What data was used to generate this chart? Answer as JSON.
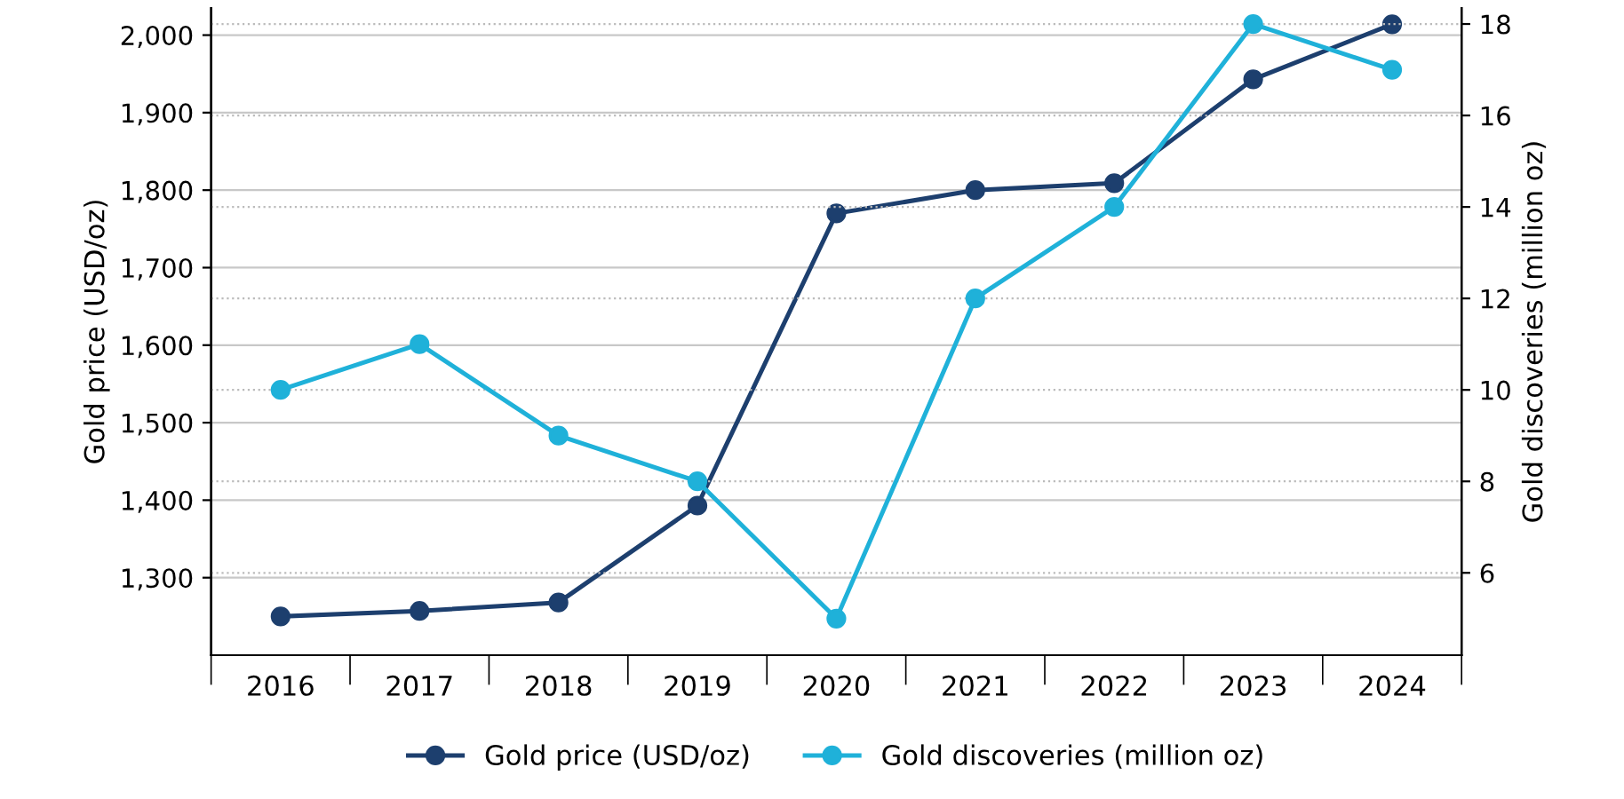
{
  "chart_data": {
    "type": "line",
    "ylabel": "Gold price (USD/oz)",
    "y2label": "Gold discoveries (million oz)",
    "categories": [
      "2016",
      "2017",
      "2018",
      "2019",
      "2020",
      "2021",
      "2022",
      "2023",
      "2024"
    ],
    "series": [
      {
        "name": "Gold price (USD/oz)",
        "color": "#1d3f6e",
        "values": [
          1250,
          1257,
          1268,
          1393,
          1770,
          1800,
          1809,
          1943,
          2014
        ]
      },
      {
        "name": "Gold discoveries (million oz)",
        "color": "#1fb1d9",
        "axis": "y2",
        "values": [
          10,
          11,
          9,
          8,
          5,
          12,
          14,
          18,
          17
        ]
      }
    ],
    "ylim": [
      1200,
      2035
    ],
    "yticks": [
      {
        "value": 1300,
        "label": "1,300"
      },
      {
        "value": 1400,
        "label": "1,400"
      },
      {
        "value": 1500,
        "label": "1,500"
      },
      {
        "value": 1600,
        "label": "1,600"
      },
      {
        "value": 1700,
        "label": "1,700"
      },
      {
        "value": 1800,
        "label": "1,800"
      },
      {
        "value": 1900,
        "label": "1,900"
      },
      {
        "value": 2000,
        "label": "2,000"
      }
    ],
    "y2lim": [
      4.2,
      18.35
    ],
    "y2ticks": [
      6,
      8,
      10,
      12,
      14,
      16,
      18
    ],
    "grid": "y",
    "legend": "bottom",
    "marker": "circle",
    "line_style": "solid"
  }
}
